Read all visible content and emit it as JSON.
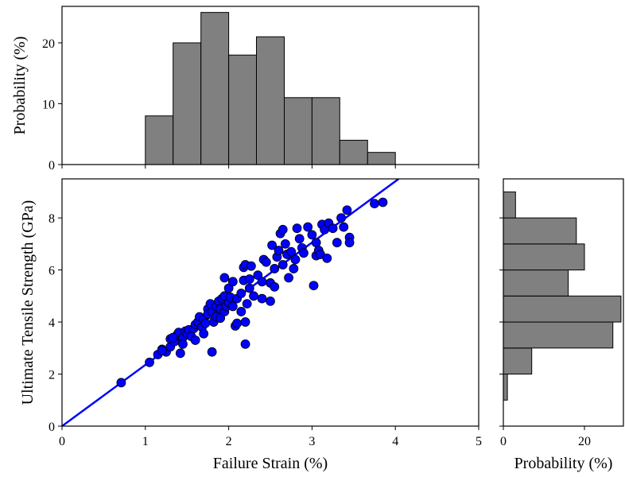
{
  "chart_data": [
    {
      "type": "histogram",
      "orientation": "vertical",
      "ylabel": "Probability (%)",
      "bins": [
        1,
        1.333,
        1.667,
        2,
        2.333,
        2.667,
        3,
        3.333,
        3.667,
        4
      ],
      "values": [
        8,
        20,
        25,
        18,
        21,
        11,
        11,
        4,
        2
      ],
      "color": "#808080",
      "xlim": [
        0,
        5
      ],
      "xticks": [
        0,
        1,
        2,
        3,
        4,
        5
      ],
      "xtick_labels": false,
      "ylim": [
        0,
        26
      ],
      "yticks": [
        0,
        10,
        20
      ],
      "ytick_labels": true
    },
    {
      "type": "scatter",
      "xlabel": "Failure Strain (%)",
      "ylabel": "Ultimate Tensile Strength (GPa)",
      "series": [
        {
          "type": "scatter",
          "color": "#0000ff",
          "x": [
            0.71,
            1.05,
            1.15,
            1.2,
            1.25,
            1.3,
            1.3,
            1.35,
            1.38,
            1.4,
            1.42,
            1.45,
            1.48,
            1.5,
            1.52,
            1.55,
            1.58,
            1.6,
            1.6,
            1.63,
            1.65,
            1.68,
            1.7,
            1.7,
            1.72,
            1.75,
            1.75,
            1.78,
            1.8,
            1.82,
            1.85,
            1.85,
            1.88,
            1.9,
            1.9,
            1.92,
            1.95,
            1.95,
            1.95,
            1.97,
            2.0,
            2.0,
            2.02,
            2.05,
            2.05,
            2.08,
            2.1,
            2.1,
            2.15,
            2.15,
            2.18,
            2.18,
            2.2,
            2.2,
            2.22,
            2.25,
            2.25,
            2.27,
            2.3,
            2.35,
            2.4,
            2.42,
            2.45,
            2.5,
            2.5,
            2.52,
            2.55,
            2.55,
            2.58,
            2.6,
            2.62,
            2.65,
            2.65,
            2.68,
            2.7,
            2.72,
            2.75,
            2.78,
            2.8,
            2.82,
            2.85,
            2.88,
            2.9,
            2.95,
            3.0,
            3.02,
            3.05,
            3.05,
            3.08,
            3.1,
            3.12,
            3.15,
            3.18,
            3.2,
            3.25,
            3.3,
            3.35,
            3.42,
            3.45,
            3.45,
            3.38,
            3.75,
            3.85,
            1.45,
            1.33,
            1.2,
            1.8,
            2.2,
            2.4
          ],
          "y": [
            1.67,
            2.45,
            2.75,
            2.95,
            2.85,
            3.05,
            3.35,
            3.25,
            3.5,
            3.6,
            2.8,
            3.4,
            3.65,
            3.55,
            3.7,
            3.45,
            3.75,
            3.3,
            3.9,
            4.0,
            4.2,
            3.8,
            3.55,
            4.1,
            3.95,
            4.5,
            4.3,
            4.7,
            4.4,
            4.0,
            4.6,
            4.2,
            4.8,
            4.5,
            4.15,
            4.9,
            5.0,
            4.4,
            5.7,
            4.6,
            4.75,
            5.3,
            4.95,
            4.6,
            5.55,
            3.85,
            4.9,
            3.95,
            4.4,
            5.1,
            5.6,
            6.1,
            6.2,
            3.15,
            4.7,
            5.3,
            5.65,
            6.15,
            5.0,
            5.8,
            5.55,
            6.4,
            6.3,
            5.5,
            4.8,
            6.95,
            5.35,
            6.05,
            6.5,
            6.75,
            7.4,
            6.2,
            7.55,
            7.0,
            6.6,
            5.7,
            6.7,
            6.05,
            6.4,
            7.6,
            7.2,
            6.85,
            6.65,
            7.65,
            7.35,
            5.4,
            6.55,
            7.05,
            6.75,
            6.6,
            7.75,
            7.55,
            6.45,
            7.8,
            7.6,
            7.05,
            8.0,
            8.3,
            7.25,
            7.05,
            7.65,
            8.55,
            8.6,
            3.15,
            3.4,
            2.9,
            2.85,
            4.0,
            4.9
          ]
        },
        {
          "type": "line",
          "color": "#0000ff",
          "x": [
            0,
            4.04
          ],
          "y": [
            0,
            9.5
          ]
        }
      ],
      "xlim": [
        0,
        5
      ],
      "xticks": [
        0,
        1,
        2,
        3,
        4,
        5
      ],
      "xtick_labels": true,
      "ylim": [
        0,
        9.5
      ],
      "yticks": [
        0,
        2,
        4,
        6,
        8
      ],
      "ytick_labels": true
    },
    {
      "type": "histogram",
      "orientation": "horizontal",
      "xlabel": "Probability (%)",
      "bins": [
        1,
        2,
        3,
        4,
        5,
        6,
        7,
        8,
        9
      ],
      "values": [
        1,
        7,
        27,
        29,
        16,
        20,
        18,
        3
      ],
      "color": "#808080",
      "xlim": [
        0,
        29.6
      ],
      "xticks": [
        0,
        20
      ],
      "xtick_labels": true,
      "ylim": [
        0,
        9.5
      ],
      "yticks": [
        0,
        2,
        4,
        6,
        8
      ],
      "ytick_labels": false
    }
  ]
}
